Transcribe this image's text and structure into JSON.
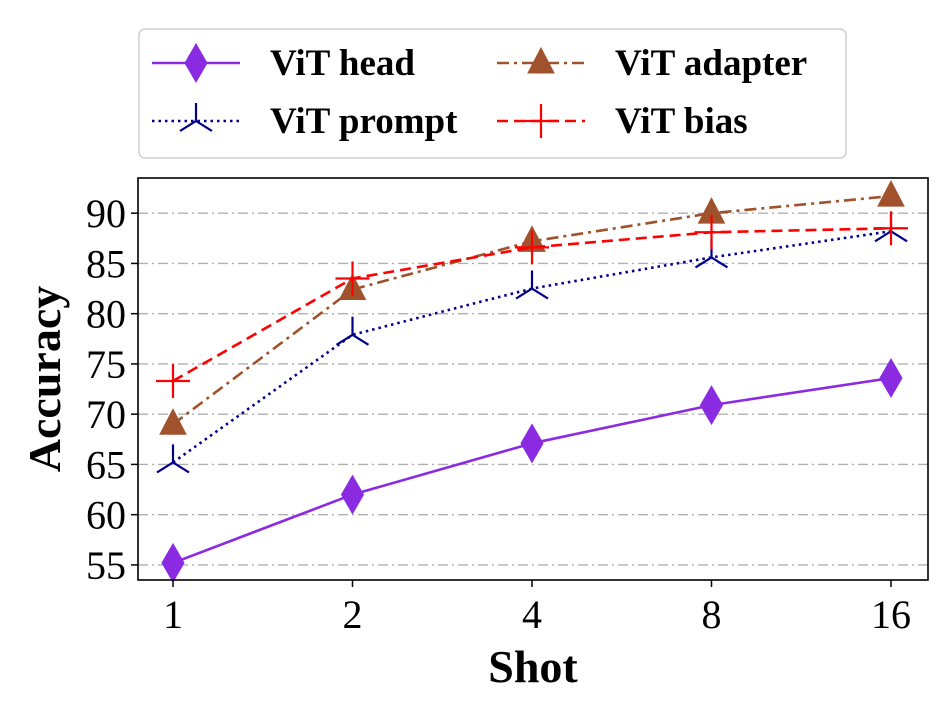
{
  "chart_data": {
    "type": "line",
    "xlabel": "Shot",
    "ylabel": "Accuracy",
    "categories": [
      "1",
      "2",
      "4",
      "8",
      "16"
    ],
    "ylim": [
      53.5,
      93.5
    ],
    "yticks": [
      55,
      60,
      65,
      70,
      75,
      80,
      85,
      90
    ],
    "grid": "horizontal dash-dot",
    "legend": {
      "placement": "top, outside",
      "columns": 2
    },
    "series": [
      {
        "name": "ViT head",
        "color": "#8a2be2",
        "marker": "thin-diamond",
        "linestyle": "solid",
        "values": [
          55.2,
          62.0,
          67.1,
          70.9,
          73.6
        ]
      },
      {
        "name": "ViT adapter",
        "color": "#a0522d",
        "marker": "triangle-up",
        "linestyle": "dashdot",
        "values": [
          69.0,
          82.4,
          87.2,
          90.0,
          91.7
        ]
      },
      {
        "name": "ViT prompt",
        "color": "#00008b",
        "marker": "tri-down",
        "linestyle": "dotted",
        "values": [
          65.2,
          77.9,
          82.5,
          85.6,
          88.2
        ]
      },
      {
        "name": "ViT bias",
        "color": "#ff0000",
        "marker": "plus",
        "linestyle": "dashed",
        "values": [
          73.3,
          83.5,
          86.6,
          88.1,
          88.5
        ]
      }
    ]
  }
}
